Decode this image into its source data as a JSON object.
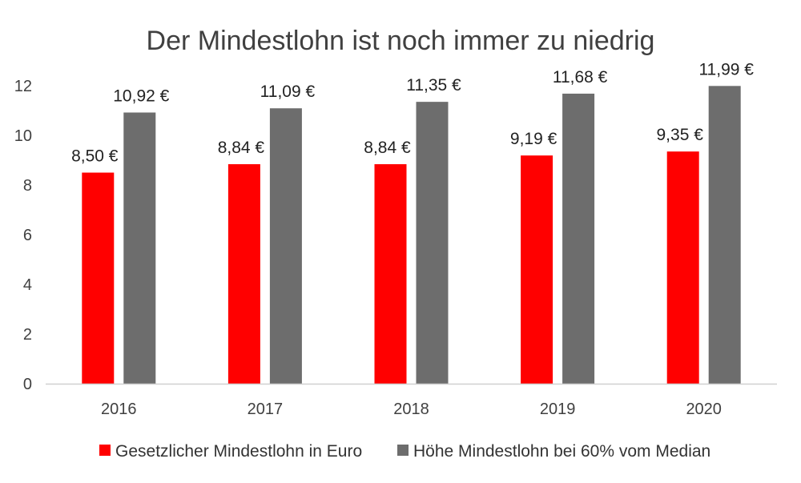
{
  "chart_data": {
    "type": "bar",
    "title": "Der Mindestlohn ist noch immer zu niedrig",
    "xlabel": "",
    "ylabel": "",
    "categories": [
      "2016",
      "2017",
      "2018",
      "2019",
      "2020"
    ],
    "ylim": [
      0,
      12
    ],
    "yticks": [
      "0",
      "2",
      "4",
      "6",
      "8",
      "10",
      "12"
    ],
    "grid": false,
    "legend_position": "bottom",
    "series": [
      {
        "name": "Gesetzlicher Mindestlohn in Euro",
        "color": "#ff0000",
        "values": [
          8.5,
          8.84,
          8.84,
          9.19,
          9.35
        ],
        "labels": [
          "8,50 €",
          "8,84 €",
          "8,84 €",
          "9,19 €",
          "9,35 €"
        ]
      },
      {
        "name": "Höhe Mindestlohn bei  60% vom Median",
        "color": "#6d6d6d",
        "values": [
          10.92,
          11.09,
          11.35,
          11.68,
          11.99
        ],
        "labels": [
          "10,92 €",
          "11,09 €",
          "11,35 €",
          "11,68 €",
          "11,99 €"
        ]
      }
    ]
  }
}
